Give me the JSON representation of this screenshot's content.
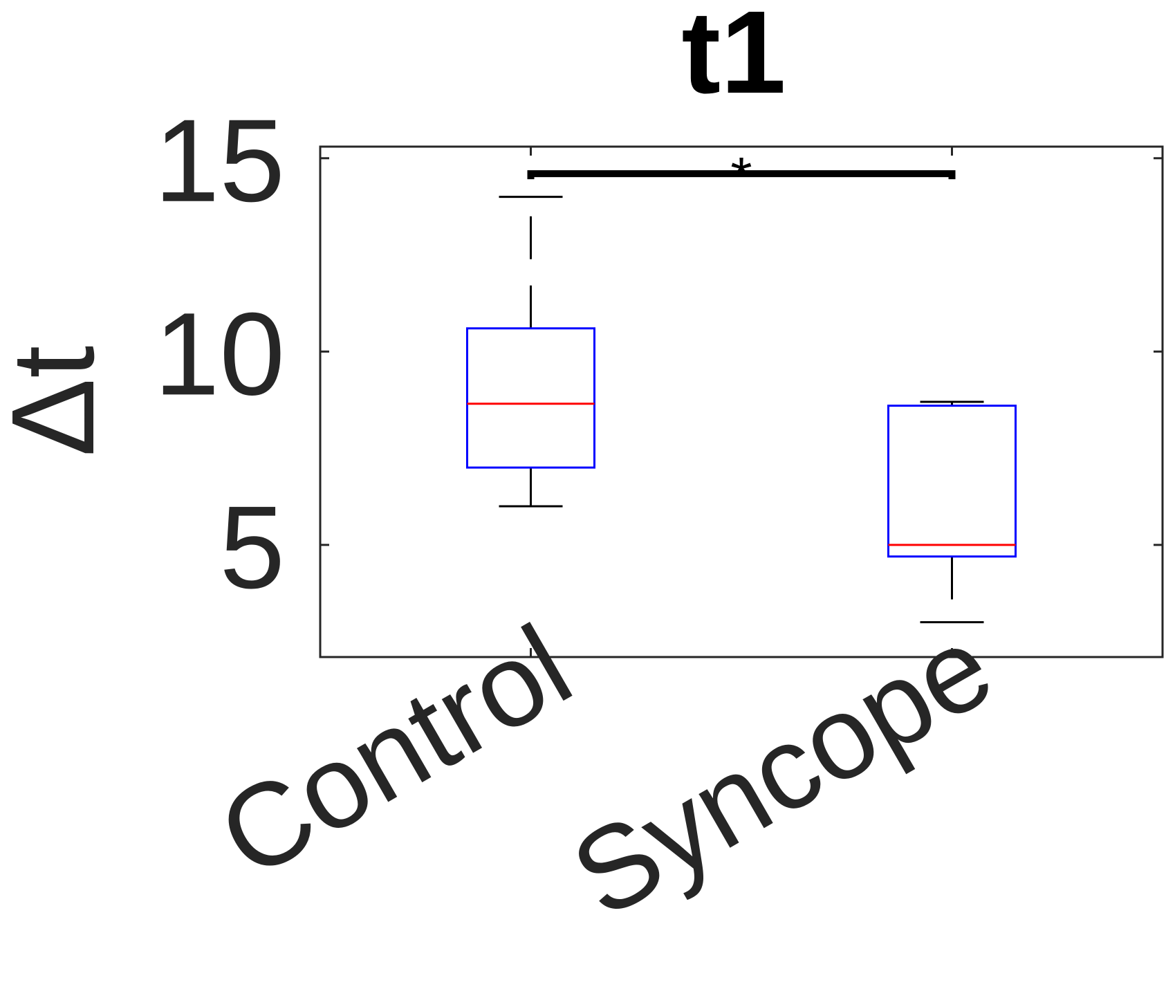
{
  "chart_data": {
    "type": "box",
    "title": "t1",
    "xlabel": "",
    "ylabel": "Δt",
    "ylim": [
      2.1,
      15.3
    ],
    "yticks": [
      5,
      10,
      15
    ],
    "categories": [
      "Control",
      "Syncope"
    ],
    "boxes": [
      {
        "category": "Control",
        "whisker_low": 6.0,
        "q1": 7.0,
        "median": 8.65,
        "q3": 10.6,
        "whisker_high": 14.0
      },
      {
        "category": "Syncope",
        "whisker_low": 3.0,
        "q1": 4.7,
        "median": 5.0,
        "q3": 8.6,
        "whisker_high": 8.7
      }
    ],
    "significance": {
      "between": [
        "Control",
        "Syncope"
      ],
      "y": 14.6,
      "label": "*"
    },
    "colors": {
      "box": "#0000ff",
      "median": "#ff0000",
      "whisker": "#000000",
      "axis": "#262626",
      "text": "#262626"
    },
    "grid": false
  }
}
